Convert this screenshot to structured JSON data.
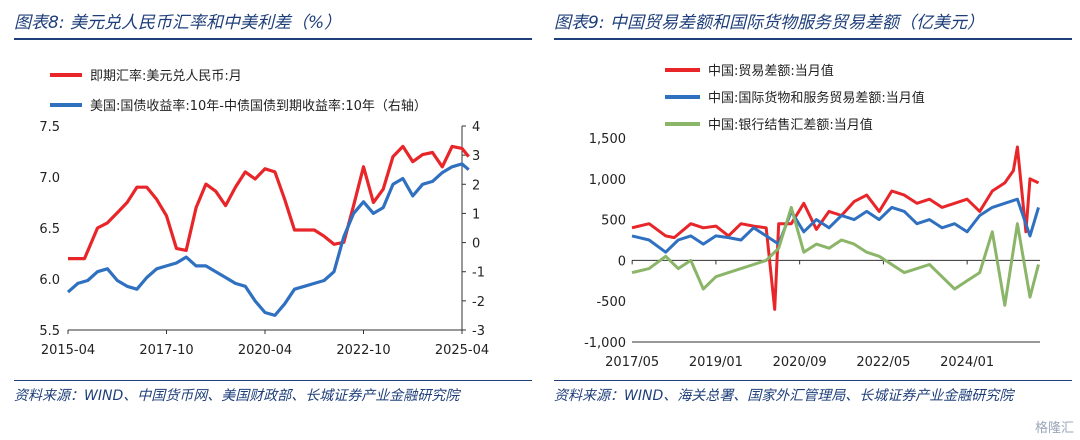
{
  "left_panel": {
    "title": "图表8: 美元兑人民币汇率和中美利差（%）",
    "source": "资料来源：WIND、中国货币网、美国财政部、长城证券产业金融研究院"
  },
  "right_panel": {
    "title": "图表9: 中国贸易差额和国际货物服务贸易差额（亿美元）",
    "source": "资料来源：WIND、海关总署、国家外汇管理局、长城证券产业金融研究院"
  },
  "watermark": "格隆汇",
  "chart_data": [
    {
      "type": "line",
      "x_ticks": [
        "2015-04",
        "2017-10",
        "2020-04",
        "2022-10",
        "2025-04"
      ],
      "left_axis": {
        "ylim": [
          5.5,
          7.5
        ],
        "ticks": [
          "5.5",
          "6.0",
          "6.5",
          "7.0",
          "7.5"
        ]
      },
      "right_axis": {
        "ylim": [
          -3,
          4
        ],
        "ticks": [
          "-3",
          "-2",
          "-1",
          "0",
          "1",
          "2",
          "3",
          "4"
        ]
      },
      "legend_position": "top-left",
      "series": [
        {
          "name": "即期汇率:美元兑人民币:月",
          "color": "#e8262a",
          "axis": "left",
          "x": [
            2015.25,
            2015.67,
            2016.0,
            2016.25,
            2016.5,
            2016.75,
            2017.0,
            2017.25,
            2017.5,
            2017.75,
            2018.0,
            2018.25,
            2018.5,
            2018.75,
            2019.0,
            2019.25,
            2019.5,
            2019.75,
            2020.0,
            2020.25,
            2020.5,
            2020.75,
            2021.0,
            2021.25,
            2021.5,
            2021.75,
            2022.0,
            2022.25,
            2022.5,
            2022.75,
            2023.0,
            2023.25,
            2023.5,
            2023.75,
            2024.0,
            2024.25,
            2024.5,
            2024.75,
            2025.0,
            2025.25,
            2025.42
          ],
          "values": [
            6.2,
            6.2,
            6.5,
            6.55,
            6.65,
            6.75,
            6.9,
            6.9,
            6.78,
            6.62,
            6.3,
            6.28,
            6.7,
            6.93,
            6.86,
            6.72,
            6.9,
            7.05,
            6.98,
            7.08,
            7.05,
            6.78,
            6.48,
            6.48,
            6.48,
            6.42,
            6.34,
            6.36,
            6.72,
            7.1,
            6.75,
            6.88,
            7.2,
            7.3,
            7.15,
            7.22,
            7.24,
            7.1,
            7.3,
            7.28,
            7.2
          ]
        },
        {
          "name": "美国:国债收益率:10年-中债国债到期收益率:10年（右轴）",
          "color": "#2f70c0",
          "axis": "right",
          "x": [
            2015.25,
            2015.5,
            2015.75,
            2016.0,
            2016.25,
            2016.5,
            2016.75,
            2017.0,
            2017.25,
            2017.5,
            2017.75,
            2018.0,
            2018.25,
            2018.5,
            2018.75,
            2019.0,
            2019.25,
            2019.5,
            2019.75,
            2020.0,
            2020.25,
            2020.5,
            2020.75,
            2021.0,
            2021.25,
            2021.5,
            2021.75,
            2022.0,
            2022.25,
            2022.5,
            2022.75,
            2023.0,
            2023.25,
            2023.5,
            2023.75,
            2024.0,
            2024.25,
            2024.5,
            2024.75,
            2025.0,
            2025.25,
            2025.42
          ],
          "values": [
            -1.7,
            -1.4,
            -1.3,
            -1.0,
            -0.9,
            -1.3,
            -1.5,
            -1.6,
            -1.2,
            -0.9,
            -0.8,
            -0.7,
            -0.5,
            -0.8,
            -0.8,
            -1.0,
            -1.2,
            -1.4,
            -1.5,
            -2.0,
            -2.4,
            -2.5,
            -2.1,
            -1.6,
            -1.5,
            -1.4,
            -1.3,
            -1.0,
            0.2,
            1.0,
            1.4,
            1.0,
            1.2,
            2.0,
            2.2,
            1.6,
            2.0,
            2.1,
            2.4,
            2.6,
            2.7,
            2.5
          ]
        }
      ]
    },
    {
      "type": "line",
      "x_ticks": [
        "2017/05",
        "2019/01",
        "2020/09",
        "2022/05",
        "2024/01"
      ],
      "ylim": [
        -1000,
        1500
      ],
      "y_ticks": [
        "-1,000",
        "-500",
        "0",
        "500",
        "1,000",
        "1,500"
      ],
      "legend_position": "top-left",
      "series": [
        {
          "name": "中国:贸易差额:当月值",
          "color": "#e8262a",
          "x": [
            2017.33,
            2017.67,
            2018.0,
            2018.17,
            2018.5,
            2018.75,
            2019.0,
            2019.25,
            2019.5,
            2019.75,
            2020.0,
            2020.17,
            2020.25,
            2020.5,
            2020.75,
            2021.0,
            2021.25,
            2021.5,
            2021.75,
            2022.0,
            2022.25,
            2022.5,
            2022.75,
            2023.0,
            2023.25,
            2023.5,
            2023.75,
            2024.0,
            2024.25,
            2024.5,
            2024.75,
            2024.92,
            2025.0,
            2025.17,
            2025.25,
            2025.42
          ],
          "values": [
            400,
            450,
            300,
            280,
            450,
            400,
            420,
            300,
            450,
            420,
            400,
            -600,
            450,
            450,
            700,
            380,
            600,
            550,
            720,
            800,
            600,
            850,
            800,
            700,
            750,
            650,
            700,
            750,
            600,
            850,
            950,
            1100,
            1390,
            350,
            1000,
            950
          ]
        },
        {
          "name": "中国:国际货物和服务贸易差额:当月值",
          "color": "#2f70c0",
          "x": [
            2017.33,
            2017.67,
            2018.0,
            2018.25,
            2018.5,
            2018.75,
            2019.0,
            2019.25,
            2019.5,
            2019.75,
            2020.0,
            2020.25,
            2020.5,
            2020.75,
            2021.0,
            2021.25,
            2021.5,
            2021.75,
            2022.0,
            2022.25,
            2022.5,
            2022.75,
            2023.0,
            2023.25,
            2023.5,
            2023.75,
            2024.0,
            2024.25,
            2024.5,
            2024.75,
            2025.0,
            2025.25,
            2025.42
          ],
          "values": [
            300,
            250,
            100,
            250,
            300,
            200,
            300,
            280,
            250,
            400,
            300,
            200,
            600,
            350,
            500,
            400,
            550,
            500,
            600,
            500,
            650,
            600,
            450,
            500,
            400,
            450,
            350,
            550,
            650,
            700,
            750,
            300,
            650
          ]
        },
        {
          "name": "中国:银行结售汇差额:当月值",
          "color": "#8bb568",
          "x": [
            2017.33,
            2017.67,
            2018.0,
            2018.25,
            2018.5,
            2018.75,
            2019.0,
            2019.25,
            2019.5,
            2019.75,
            2020.0,
            2020.25,
            2020.5,
            2020.75,
            2021.0,
            2021.25,
            2021.5,
            2021.75,
            2022.0,
            2022.25,
            2022.5,
            2022.75,
            2023.0,
            2023.25,
            2023.5,
            2023.75,
            2024.0,
            2024.25,
            2024.5,
            2024.75,
            2025.0,
            2025.25,
            2025.42
          ],
          "values": [
            -150,
            -100,
            50,
            -100,
            0,
            -350,
            -200,
            -150,
            -100,
            -50,
            0,
            150,
            650,
            100,
            200,
            150,
            250,
            200,
            100,
            50,
            -50,
            -150,
            -100,
            -50,
            -200,
            -350,
            -250,
            -150,
            350,
            -550,
            450,
            -450,
            -50
          ]
        }
      ]
    }
  ]
}
